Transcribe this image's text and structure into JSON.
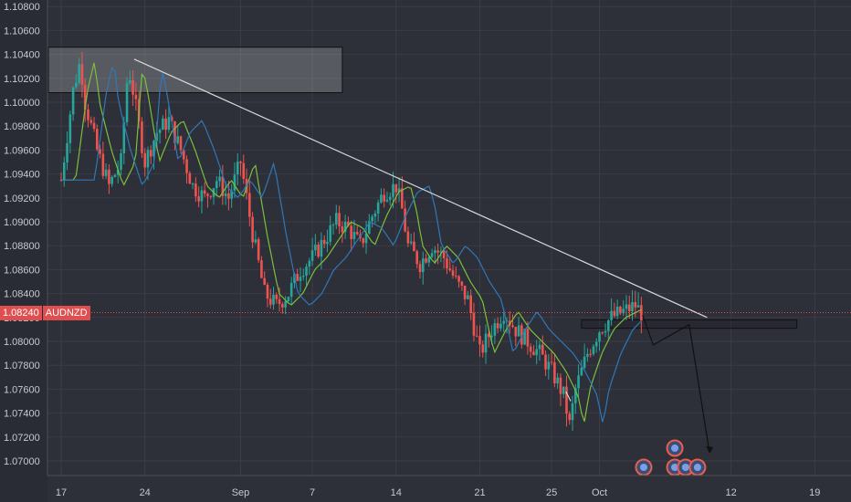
{
  "colors": {
    "background": "#2d2f39",
    "grid": "#3a3c47",
    "up": "#26a69a",
    "down": "#ef5350",
    "ma_fast": "#7cbf3a",
    "ma_slow": "#2f78b8",
    "trendline": "#d9d9d9",
    "price_line": "#e04f4f",
    "axis_text": "#c8c9cf"
  },
  "symbol": "AUDNZD",
  "current_price_label": "1.08240",
  "chart_data": {
    "type": "candlestick",
    "title": "",
    "xlabel": "",
    "ylabel": "",
    "ylim": [
      1.069,
      1.1088
    ],
    "y_ticks": [
      "1.10800",
      "1.10600",
      "1.10400",
      "1.10200",
      "1.10000",
      "1.09800",
      "1.09600",
      "1.09400",
      "1.09200",
      "1.09000",
      "1.08800",
      "1.08600",
      "1.08400",
      "1.08200",
      "1.08000",
      "1.07800",
      "1.07600",
      "1.07400",
      "1.07200",
      "1.07000"
    ],
    "x_ticks": [
      {
        "label": "17",
        "day": 0
      },
      {
        "label": "24",
        "day": 7
      },
      {
        "label": "Sep",
        "day": 15
      },
      {
        "label": "7",
        "day": 21
      },
      {
        "label": "14",
        "day": 28
      },
      {
        "label": "21",
        "day": 35
      },
      {
        "label": "25",
        "day": 41
      },
      {
        "label": "Oct",
        "day": 45
      },
      {
        "label": "12",
        "day": 56
      },
      {
        "label": "19",
        "day": 63
      }
    ],
    "close_path": [
      [
        0,
        1.0935
      ],
      [
        1,
        1.101
      ],
      [
        1.6,
        1.1035
      ],
      [
        2,
        1.1
      ],
      [
        3,
        1.096
      ],
      [
        4,
        1.093
      ],
      [
        5,
        1.095
      ],
      [
        5.6,
        1.103
      ],
      [
        6,
        1.101
      ],
      [
        7,
        1.095
      ],
      [
        8,
        1.0975
      ],
      [
        9,
        1.0985
      ],
      [
        10,
        1.096
      ],
      [
        11,
        1.093
      ],
      [
        12,
        1.092
      ],
      [
        13,
        1.0935
      ],
      [
        14,
        1.092
      ],
      [
        15,
        1.095
      ],
      [
        16,
        1.089
      ],
      [
        17,
        1.084
      ],
      [
        18,
        1.083
      ],
      [
        19,
        1.084
      ],
      [
        20,
        1.086
      ],
      [
        21,
        1.087
      ],
      [
        22,
        1.0885
      ],
      [
        23,
        1.09
      ],
      [
        24,
        1.0895
      ],
      [
        25,
        1.088
      ],
      [
        26,
        1.0905
      ],
      [
        27,
        1.0925
      ],
      [
        28,
        1.093
      ],
      [
        28.5,
        1.091
      ],
      [
        29,
        1.088
      ],
      [
        30,
        1.0865
      ],
      [
        31,
        1.088
      ],
      [
        32,
        1.087
      ],
      [
        33,
        1.085
      ],
      [
        34,
        1.0835
      ],
      [
        35,
        1.079
      ],
      [
        36,
        1.081
      ],
      [
        37,
        1.0825
      ],
      [
        38,
        1.081
      ],
      [
        39,
        1.08
      ],
      [
        40,
        1.079
      ],
      [
        41,
        1.0775
      ],
      [
        42,
        1.0755
      ],
      [
        42.5,
        1.073
      ],
      [
        43,
        1.076
      ],
      [
        44,
        1.079
      ],
      [
        45,
        1.081
      ],
      [
        46,
        1.082
      ],
      [
        47,
        1.0825
      ],
      [
        48,
        1.083
      ],
      [
        48.5,
        1.0824
      ]
    ],
    "moving_averages": [
      {
        "color_key": "ma_fast",
        "lag": 1.2
      },
      {
        "color_key": "ma_slow",
        "lag": 2.8
      }
    ],
    "current_price": 1.0824,
    "annotations": {
      "resistance_zone": {
        "day_start": 0,
        "day_end": 23.5,
        "y_top": 1.1046,
        "y_bottom": 1.1008
      },
      "support_zone": {
        "day_start": 43.5,
        "day_end": 61.5,
        "y_top": 1.0818,
        "y_bottom": 1.0811
      },
      "trendline": {
        "from": [
          6.1,
          1.1036
        ],
        "to": [
          54,
          1.082
        ]
      },
      "projection": [
        [
          48.6,
          1.0822
        ],
        [
          49.5,
          1.0797
        ],
        [
          52.5,
          1.0814
        ],
        [
          54.2,
          1.0707
        ]
      ],
      "small_arrow": [
        [
          42.2,
          1.0758
        ],
        [
          42.6,
          1.075
        ]
      ]
    },
    "event_markers": [
      {
        "day": 48.7,
        "row": 0,
        "color": "#e8604a"
      },
      {
        "day": 51.3,
        "row": -1,
        "color": "#e8604a"
      },
      {
        "day": 51.3,
        "row": 0,
        "color": "#e8604a"
      },
      {
        "day": 52.2,
        "row": 0,
        "color": "#e8604a"
      },
      {
        "day": 53.2,
        "row": 0,
        "color": "#e8604a"
      }
    ]
  }
}
